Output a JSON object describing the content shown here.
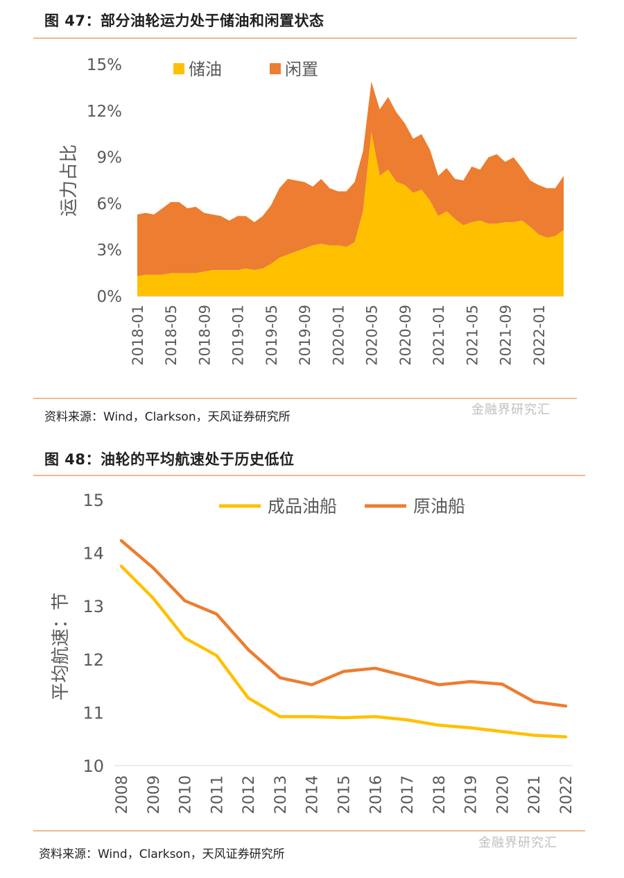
{
  "figure1": {
    "title": "图 47：部分油轮运力处于储油和闲置状态",
    "source": "资料来源：Wind，Clarkson，天风证券研究所",
    "watermark": "金融界研究汇"
  },
  "figure2": {
    "title": "图 48：油轮的平均航速处于历史低位",
    "source": "资料来源：Wind，Clarkson，天风证券研究所",
    "watermark": "金融界研究汇"
  },
  "colors": {
    "storage": "#ffc000",
    "idle": "#ed7d31",
    "product_tanker": "#ffc000",
    "crude_tanker": "#ed7d31"
  },
  "chart_data": [
    {
      "type": "area",
      "stacked": true,
      "ylabel": "运力占比",
      "ylim": [
        0,
        15
      ],
      "y_ticks": [
        "0%",
        "3%",
        "6%",
        "9%",
        "12%",
        "15%"
      ],
      "x_tick_labels": [
        "2018-01",
        "2018-05",
        "2018-09",
        "2019-01",
        "2019-05",
        "2019-09",
        "2020-01",
        "2020-05",
        "2020-09",
        "2021-01",
        "2021-05",
        "2021-09",
        "2022-01"
      ],
      "x": [
        "2018-01",
        "2018-02",
        "2018-03",
        "2018-04",
        "2018-05",
        "2018-06",
        "2018-07",
        "2018-08",
        "2018-09",
        "2018-10",
        "2018-11",
        "2018-12",
        "2019-01",
        "2019-02",
        "2019-03",
        "2019-04",
        "2019-05",
        "2019-06",
        "2019-07",
        "2019-08",
        "2019-09",
        "2019-10",
        "2019-11",
        "2019-12",
        "2020-01",
        "2020-02",
        "2020-03",
        "2020-04",
        "2020-05",
        "2020-06",
        "2020-07",
        "2020-08",
        "2020-09",
        "2020-10",
        "2020-11",
        "2020-12",
        "2021-01",
        "2021-02",
        "2021-03",
        "2021-04",
        "2021-05",
        "2021-06",
        "2021-07",
        "2021-08",
        "2021-09",
        "2021-10",
        "2021-11",
        "2021-12",
        "2022-01",
        "2022-02",
        "2022-03",
        "2022-04"
      ],
      "legend_position": "top",
      "series": [
        {
          "name": "储油",
          "values": [
            1.3,
            1.4,
            1.4,
            1.4,
            1.5,
            1.5,
            1.5,
            1.5,
            1.6,
            1.7,
            1.7,
            1.7,
            1.7,
            1.8,
            1.7,
            1.8,
            2.1,
            2.5,
            2.7,
            2.9,
            3.1,
            3.3,
            3.4,
            3.3,
            3.3,
            3.2,
            3.5,
            5.5,
            10.6,
            7.8,
            8.2,
            7.4,
            7.2,
            6.7,
            6.9,
            6.2,
            5.2,
            5.5,
            5.0,
            4.6,
            4.8,
            4.9,
            4.7,
            4.7,
            4.8,
            4.8,
            4.9,
            4.5,
            4.0,
            3.8,
            3.9,
            4.3
          ]
        },
        {
          "name": "闲置",
          "values": [
            4.0,
            4.0,
            3.9,
            4.3,
            4.6,
            4.6,
            4.2,
            4.3,
            3.8,
            3.6,
            3.5,
            3.2,
            3.5,
            3.4,
            3.1,
            3.4,
            3.8,
            4.5,
            4.9,
            4.6,
            4.3,
            3.8,
            4.2,
            3.7,
            3.5,
            3.6,
            3.9,
            3.9,
            3.3,
            4.3,
            4.7,
            4.5,
            4.0,
            3.5,
            3.6,
            3.3,
            2.6,
            2.8,
            2.6,
            2.9,
            3.6,
            3.3,
            4.3,
            4.5,
            3.9,
            4.2,
            3.4,
            3.0,
            3.2,
            3.2,
            3.1,
            3.5
          ]
        }
      ]
    },
    {
      "type": "line",
      "ylabel": "平均航速：节",
      "ylim": [
        10,
        15
      ],
      "y_ticks": [
        "10",
        "11",
        "12",
        "13",
        "14",
        "15"
      ],
      "x": [
        "2008",
        "2009",
        "2010",
        "2011",
        "2012",
        "2013",
        "2014",
        "2015",
        "2016",
        "2017",
        "2018",
        "2019",
        "2020",
        "2021",
        "2022"
      ],
      "legend_position": "top",
      "series": [
        {
          "name": "成品油船",
          "values": [
            13.75,
            13.15,
            12.4,
            12.07,
            11.27,
            10.92,
            10.92,
            10.9,
            10.92,
            10.86,
            10.76,
            10.71,
            10.64,
            10.57,
            10.54
          ]
        },
        {
          "name": "原油船",
          "values": [
            14.23,
            13.72,
            13.1,
            12.85,
            12.18,
            11.65,
            11.52,
            11.77,
            11.83,
            11.68,
            11.52,
            11.58,
            11.53,
            11.2,
            11.12
          ]
        }
      ]
    }
  ]
}
